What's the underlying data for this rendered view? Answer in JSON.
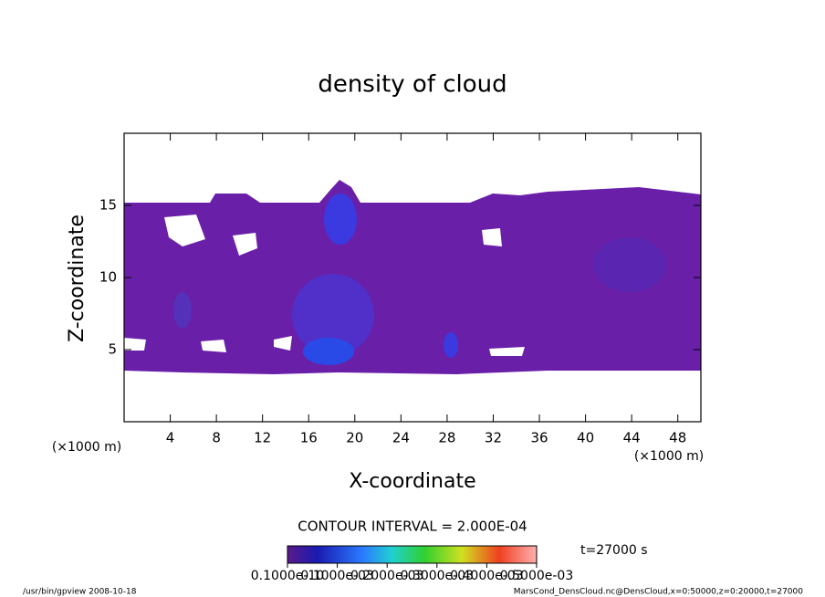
{
  "chart_data": {
    "type": "contour",
    "title": "density of cloud",
    "xlabel": "X-coordinate",
    "ylabel": "Z-coordinate",
    "xunit": "(×1000 m)",
    "yunit": "(×1000 m)",
    "xlim": [
      0,
      50
    ],
    "xticks": [
      4,
      8,
      12,
      16,
      20,
      24,
      28,
      32,
      36,
      40,
      44,
      48
    ],
    "ylim": [
      0,
      20
    ],
    "yticks": [
      5,
      10,
      15
    ],
    "contour_interval": "CONTOUR INTERVAL = 2.000E-04",
    "time_label": "t=27000 s",
    "colorbar_lim": [
      0,
      0.0005
    ],
    "colorbar_ticks": [
      {
        "value": 1e-11,
        "label": "0.1000e-10"
      },
      {
        "value": 0.0001,
        "label": "0.1000e-03"
      },
      {
        "value": 0.0002,
        "label": "0.2000e-03"
      },
      {
        "value": 0.0003,
        "label": "0.3000e-03"
      },
      {
        "value": 0.0004,
        "label": "0.4000e-03"
      },
      {
        "value": 0.0005,
        "label": "0.5000e-03"
      }
    ],
    "footer_left": "/usr/bin/gpview  2008-10-18",
    "footer_right": "MarsCond_DensCloud.nc@DensCloud,x=0:50000,z=0:20000,t=27000"
  }
}
